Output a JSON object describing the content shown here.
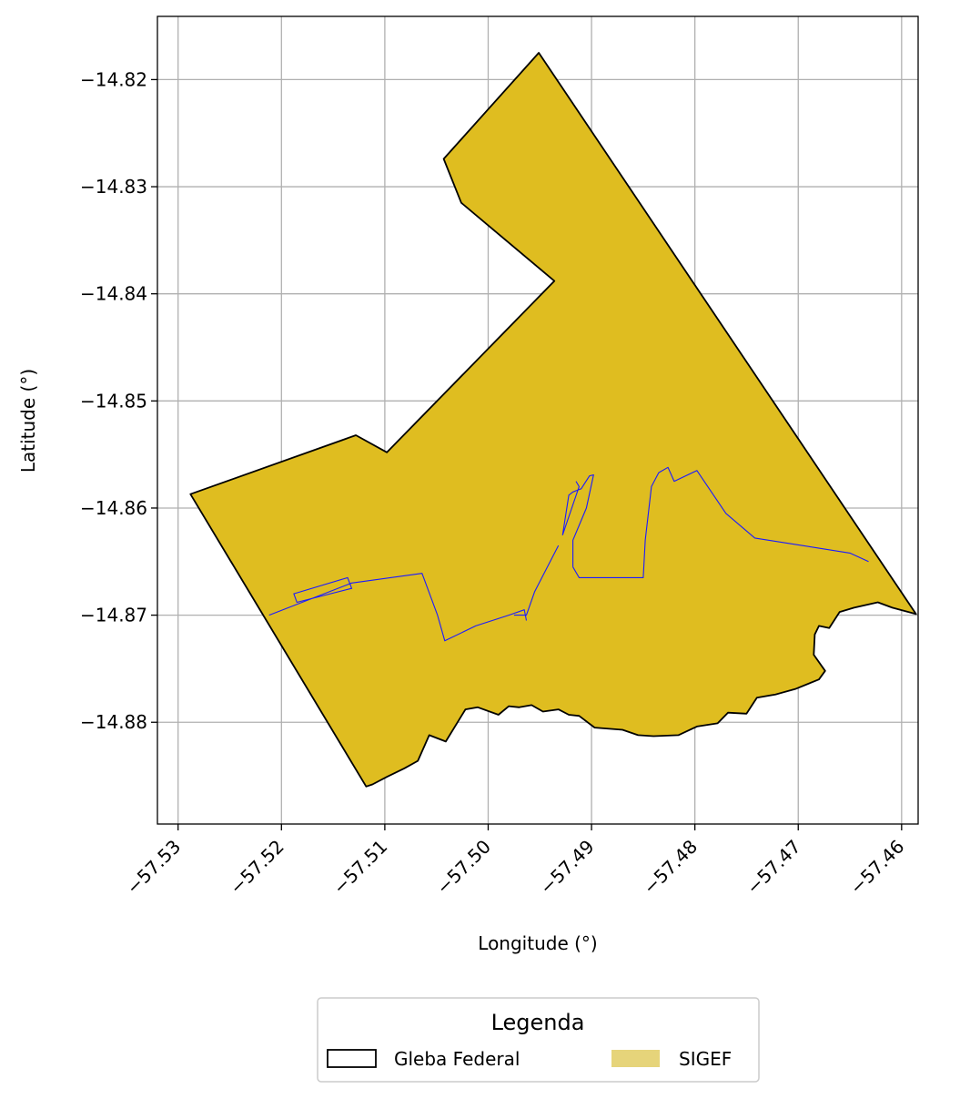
{
  "chart_data": {
    "type": "map",
    "xlabel": "Longitude (°)",
    "ylabel": "Latitude (°)",
    "xlim": [
      -57.532,
      -57.4584
    ],
    "ylim": [
      -14.8895,
      -14.8141
    ],
    "grid": true,
    "x_ticks": [
      -57.53,
      -57.52,
      -57.51,
      -57.5,
      -57.49,
      -57.48,
      -57.47,
      -57.46
    ],
    "x_tick_labels": [
      "−57.53",
      "−57.52",
      "−57.51",
      "−57.50",
      "−57.49",
      "−57.48",
      "−57.47",
      "−57.46"
    ],
    "y_ticks": [
      -14.82,
      -14.83,
      -14.84,
      -14.85,
      -14.86,
      -14.87,
      -14.88
    ],
    "y_tick_labels": [
      "−14.82",
      "−14.83",
      "−14.84",
      "−14.85",
      "−14.86",
      "−14.87",
      "−14.88"
    ],
    "layers": [
      {
        "name": "SIGEF",
        "fill": "#dfbd20",
        "legend_swatch": "#e6d47a",
        "polygon": [
          [
            -57.4951,
            -14.8175
          ],
          [
            -57.4586,
            -14.8699
          ],
          [
            -57.4609,
            -14.8693
          ],
          [
            -57.4623,
            -14.8688
          ],
          [
            -57.4646,
            -14.8693
          ],
          [
            -57.466,
            -14.8697
          ],
          [
            -57.467,
            -14.8712
          ],
          [
            -57.468,
            -14.871
          ],
          [
            -57.4684,
            -14.8718
          ],
          [
            -57.4685,
            -14.8737
          ],
          [
            -57.4674,
            -14.8752
          ],
          [
            -57.468,
            -14.876
          ],
          [
            -57.4703,
            -14.8769
          ],
          [
            -57.4722,
            -14.8774
          ],
          [
            -57.474,
            -14.8777
          ],
          [
            -57.475,
            -14.8792
          ],
          [
            -57.4768,
            -14.8791
          ],
          [
            -57.4778,
            -14.8801
          ],
          [
            -57.4798,
            -14.8804
          ],
          [
            -57.4816,
            -14.8812
          ],
          [
            -57.484,
            -14.8813
          ],
          [
            -57.4855,
            -14.8812
          ],
          [
            -57.487,
            -14.8807
          ],
          [
            -57.4897,
            -14.8805
          ],
          [
            -57.4912,
            -14.8794
          ],
          [
            -57.4922,
            -14.8793
          ],
          [
            -57.4932,
            -14.8788
          ],
          [
            -57.4947,
            -14.879
          ],
          [
            -57.4958,
            -14.8784
          ],
          [
            -57.497,
            -14.8786
          ],
          [
            -57.498,
            -14.8785
          ],
          [
            -57.499,
            -14.8793
          ],
          [
            -57.501,
            -14.8786
          ],
          [
            -57.5022,
            -14.8788
          ],
          [
            -57.5041,
            -14.8818
          ],
          [
            -57.5057,
            -14.8812
          ],
          [
            -57.5068,
            -14.8836
          ],
          [
            -57.5081,
            -14.8843
          ],
          [
            -57.5098,
            -14.8851
          ],
          [
            -57.5112,
            -14.8858
          ],
          [
            -57.5118,
            -14.886
          ],
          [
            -57.5288,
            -14.8587
          ],
          [
            -57.5128,
            -14.8532
          ],
          [
            -57.5098,
            -14.8548
          ],
          [
            -57.4936,
            -14.8388
          ],
          [
            -57.5026,
            -14.8315
          ],
          [
            -57.5043,
            -14.8274
          ]
        ]
      },
      {
        "name": "Gleba Federal",
        "stroke": "#000000",
        "fill": "none"
      },
      {
        "name": "internal-boundaries",
        "stroke": "#1a1aff",
        "lines": [
          [
            [
              -57.5212,
              -14.87
            ],
            [
              -57.5132,
              -14.867
            ],
            [
              -57.5064,
              -14.8661
            ],
            [
              -57.5049,
              -14.87
            ],
            [
              -57.5042,
              -14.8724
            ],
            [
              -57.5012,
              -14.871
            ],
            [
              -57.498,
              -14.87
            ],
            [
              -57.4965,
              -14.8695
            ],
            [
              -57.4963,
              -14.8705
            ]
          ],
          [
            [
              -57.4975,
              -14.87
            ],
            [
              -57.4963,
              -14.87
            ],
            [
              -57.4955,
              -14.8678
            ],
            [
              -57.494,
              -14.865
            ],
            [
              -57.4932,
              -14.8635
            ]
          ],
          [
            [
              -57.4918,
              -14.8655
            ],
            [
              -57.4912,
              -14.8665
            ],
            [
              -57.489,
              -14.8665
            ],
            [
              -57.485,
              -14.8665
            ],
            [
              -57.4848,
              -14.863
            ],
            [
              -57.4842,
              -14.858
            ],
            [
              -57.4835,
              -14.8567
            ],
            [
              -57.4826,
              -14.8562
            ],
            [
              -57.482,
              -14.8575
            ],
            [
              -57.4798,
              -14.8565
            ],
            [
              -57.477,
              -14.8605
            ],
            [
              -57.4742,
              -14.8628
            ],
            [
              -57.465,
              -14.8642
            ],
            [
              -57.4632,
              -14.865
            ]
          ],
          [
            [
              -57.4918,
              -14.8655
            ],
            [
              -57.4918,
              -14.863
            ],
            [
              -57.4905,
              -14.86
            ],
            [
              -57.4898,
              -14.8569
            ],
            [
              -57.4902,
              -14.857
            ],
            [
              -57.491,
              -14.8582
            ],
            [
              -57.4918,
              -14.8585
            ],
            [
              -57.4922,
              -14.8588
            ],
            [
              -57.4928,
              -14.8625
            ],
            [
              -57.4912,
              -14.858
            ],
            [
              -57.4915,
              -14.8575
            ]
          ]
        ],
        "polygons": [
          [
            [
              -57.5188,
              -14.868
            ],
            [
              -57.5136,
              -14.8665
            ],
            [
              -57.5132,
              -14.8675
            ],
            [
              -57.5185,
              -14.8688
            ]
          ]
        ]
      }
    ],
    "legend": {
      "title": "Legenda",
      "placement": "bottom-center",
      "entries": [
        {
          "label": "Gleba Federal",
          "style": "outline"
        },
        {
          "label": "SIGEF",
          "style": "fill"
        }
      ]
    }
  }
}
